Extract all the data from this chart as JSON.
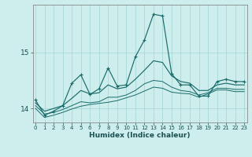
{
  "xlabel": "Humidex (Indice chaleur)",
  "background_color": "#ceeeed",
  "grid_color": "#aad8d8",
  "line_color": "#1a6b6b",
  "x": [
    0,
    1,
    2,
    3,
    4,
    5,
    6,
    7,
    8,
    9,
    10,
    11,
    12,
    13,
    14,
    15,
    16,
    17,
    18,
    19,
    20,
    21,
    22,
    23
  ],
  "line1": [
    14.15,
    13.88,
    13.95,
    14.05,
    14.45,
    14.6,
    14.25,
    14.35,
    14.72,
    14.4,
    14.42,
    14.92,
    15.22,
    15.68,
    15.65,
    14.62,
    14.42,
    14.42,
    14.22,
    14.22,
    14.48,
    14.52,
    14.48,
    14.48
  ],
  "line2": [
    14.1,
    13.95,
    14.0,
    14.05,
    14.18,
    14.32,
    14.26,
    14.28,
    14.42,
    14.35,
    14.38,
    14.52,
    14.68,
    14.85,
    14.82,
    14.58,
    14.48,
    14.45,
    14.32,
    14.32,
    14.42,
    14.45,
    14.42,
    14.42
  ],
  "line3": [
    14.05,
    13.9,
    13.93,
    13.98,
    14.05,
    14.12,
    14.1,
    14.12,
    14.2,
    14.2,
    14.24,
    14.32,
    14.44,
    14.5,
    14.48,
    14.38,
    14.32,
    14.3,
    14.24,
    14.28,
    14.36,
    14.36,
    14.34,
    14.34
  ],
  "line4": [
    14.0,
    13.84,
    13.88,
    13.93,
    13.99,
    14.04,
    14.07,
    14.09,
    14.11,
    14.14,
    14.19,
    14.24,
    14.31,
    14.38,
    14.36,
    14.29,
    14.27,
    14.26,
    14.2,
    14.26,
    14.33,
    14.33,
    14.3,
    14.3
  ],
  "ylim": [
    13.75,
    15.85
  ],
  "yticks": [
    14,
    15
  ],
  "xticks": [
    0,
    1,
    2,
    3,
    4,
    5,
    6,
    7,
    8,
    9,
    10,
    11,
    12,
    13,
    14,
    15,
    16,
    17,
    18,
    19,
    20,
    21,
    22,
    23
  ]
}
